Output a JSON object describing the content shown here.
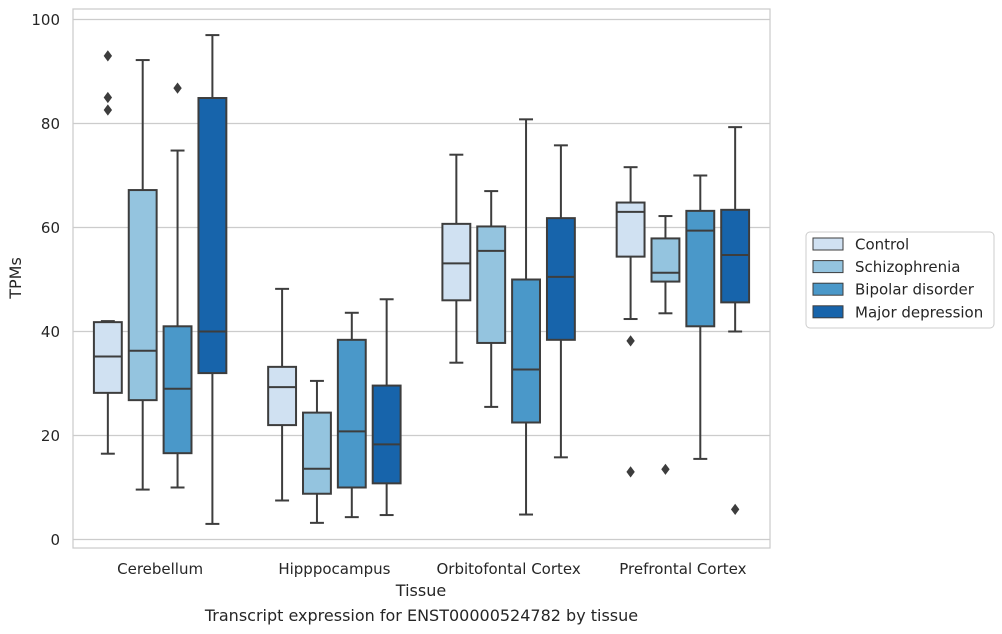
{
  "chart_data": {
    "type": "box",
    "title": "",
    "xlabel": "Tissue",
    "ylabel": "TPMs",
    "ylim": [
      -1.5,
      101.5
    ],
    "yticks": [
      0,
      20,
      40,
      60,
      80,
      100
    ],
    "grid": "horizontal",
    "legend_position": "right",
    "categories": [
      "Cerebellum",
      "Hipppocampus",
      "Orbitofontal Cortex",
      "Prefrontal Cortex"
    ],
    "series": [
      {
        "name": "Control",
        "color": "#d0e1f2",
        "boxes": [
          {
            "whislo": 16.5,
            "q1": 28.2,
            "med": 35.2,
            "q3": 41.8,
            "whishi": 42.0,
            "fliers": []
          },
          {
            "whislo": 7.5,
            "q1": 22.0,
            "med": 29.3,
            "q3": 33.2,
            "whishi": 48.2,
            "fliers": []
          },
          {
            "whislo": 34.0,
            "q1": 46.0,
            "med": 53.1,
            "q3": 60.7,
            "whishi": 74.0,
            "fliers": []
          },
          {
            "whislo": 42.4,
            "q1": 54.4,
            "med": 63.0,
            "q3": 64.8,
            "whishi": 71.6,
            "fliers": [
              38.2,
              13.0
            ]
          }
        ]
      },
      {
        "name": "Schizophrenia",
        "color": "#94c4df",
        "boxes": [
          {
            "whislo": 9.6,
            "q1": 26.8,
            "med": 36.3,
            "q3": 67.2,
            "whishi": 92.2,
            "fliers": []
          },
          {
            "whislo": 3.2,
            "q1": 8.8,
            "med": 13.6,
            "q3": 24.4,
            "whishi": 30.5,
            "fliers": []
          },
          {
            "whislo": 25.5,
            "q1": 37.8,
            "med": 55.5,
            "q3": 60.2,
            "whishi": 67.0,
            "fliers": []
          },
          {
            "whislo": 43.5,
            "q1": 49.6,
            "med": 51.3,
            "q3": 57.9,
            "whishi": 62.2,
            "fliers": [
              13.5
            ]
          }
        ]
      },
      {
        "name": "Bipolar disorder",
        "color": "#4a98c9",
        "boxes": [
          {
            "whislo": 10.0,
            "q1": 16.6,
            "med": 29.0,
            "q3": 41.0,
            "whishi": 74.8,
            "fliers": [
              86.8
            ]
          },
          {
            "whislo": 4.3,
            "q1": 10.0,
            "med": 20.8,
            "q3": 38.4,
            "whishi": 43.6,
            "fliers": []
          },
          {
            "whislo": 4.8,
            "q1": 22.5,
            "med": 32.7,
            "q3": 50.0,
            "whishi": 80.8,
            "fliers": []
          },
          {
            "whislo": 15.5,
            "q1": 41.0,
            "med": 59.4,
            "q3": 63.2,
            "whishi": 70.0,
            "fliers": []
          }
        ]
      },
      {
        "name": "Major depression",
        "color": "#1764ab",
        "boxes": [
          {
            "whislo": 3.0,
            "q1": 32.0,
            "med": 40.0,
            "q3": 84.9,
            "whishi": 97.0,
            "fliers": []
          },
          {
            "whislo": 4.7,
            "q1": 10.8,
            "med": 18.3,
            "q3": 29.6,
            "whishi": 46.2,
            "fliers": []
          },
          {
            "whislo": 15.8,
            "q1": 38.4,
            "med": 50.5,
            "q3": 61.8,
            "whishi": 75.8,
            "fliers": []
          },
          {
            "whislo": 40.0,
            "q1": 45.6,
            "med": 54.7,
            "q3": 63.4,
            "whishi": 79.3,
            "fliers": [
              5.8
            ]
          }
        ]
      }
    ],
    "extra_fliers": [
      {
        "category": 0,
        "series": 0,
        "values": [
          93.0,
          85.0,
          82.6
        ]
      }
    ]
  },
  "caption": "Transcript expression for ENST00000524782 by tissue"
}
